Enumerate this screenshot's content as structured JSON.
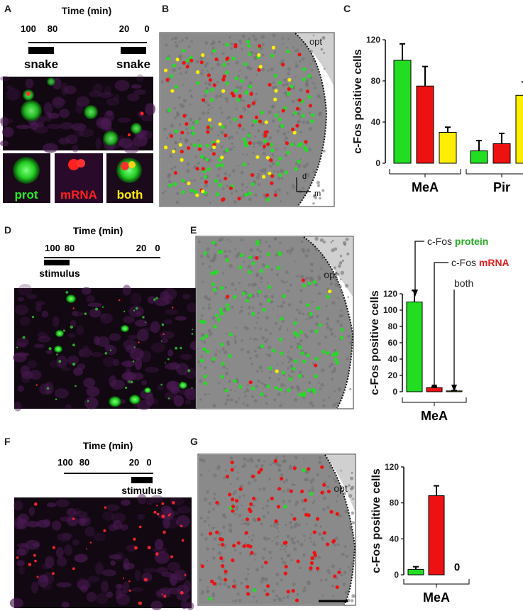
{
  "panel_labels": [
    "A",
    "B",
    "C",
    "D",
    "E",
    "F",
    "G"
  ],
  "timelines": {
    "A": {
      "title": "Time (min)",
      "ticks": [
        "100",
        "80",
        "20",
        "0"
      ],
      "stimuli": [
        "snake",
        "snake"
      ]
    },
    "D": {
      "title": "Time (min)",
      "ticks": [
        "100",
        "80",
        "20",
        "0"
      ],
      "stimuli": [
        "stimulus"
      ]
    },
    "F": {
      "title": "Time (min)",
      "ticks": [
        "100",
        "80",
        "20",
        "0"
      ],
      "stimuli": [
        "stimulus"
      ]
    }
  },
  "insets": {
    "labels": [
      "prot",
      "mRNA",
      "both"
    ]
  },
  "maps": {
    "B": {
      "region_label": "opt",
      "axis_d": "d",
      "axis_m": "m"
    },
    "E": {
      "region_label": "opt"
    },
    "G": {
      "region_label": "opt"
    }
  },
  "legend": {
    "line1_prefix": "c-Fos ",
    "line1_word": "protein",
    "line2_prefix": "c-Fos ",
    "line2_word": "mRNA",
    "line3": "both"
  },
  "colors": {
    "protein": "#22dd22",
    "mrna": "#ee1111",
    "both": "#ffee00",
    "tissue": "#8a8a8a"
  },
  "chart_data": [
    {
      "panel": "C",
      "type": "bar",
      "ylabel": "c-Fos positive cells",
      "ylim": [
        0,
        120
      ],
      "yticks": [
        0,
        40,
        80,
        120
      ],
      "groups": [
        "MeA",
        "Pir"
      ],
      "series": [
        {
          "name": "protein",
          "values": [
            100,
            12
          ],
          "errors": [
            16,
            10
          ]
        },
        {
          "name": "mRNA",
          "values": [
            75,
            19
          ],
          "errors": [
            19,
            10
          ]
        },
        {
          "name": "both",
          "values": [
            30,
            66
          ],
          "errors": [
            5,
            13
          ]
        }
      ]
    },
    {
      "panel": "E",
      "type": "bar",
      "ylabel": "c-Fos positive cells",
      "ylim": [
        0,
        120
      ],
      "yticks": [
        0,
        20,
        40,
        60,
        80,
        100,
        120
      ],
      "groups": [
        "MeA"
      ],
      "series": [
        {
          "name": "protein",
          "values": [
            110
          ],
          "errors": [
            14
          ]
        },
        {
          "name": "mRNA",
          "values": [
            5
          ],
          "errors": [
            1
          ]
        },
        {
          "name": "both",
          "values": [
            1
          ],
          "errors": [
            0.5
          ]
        }
      ]
    },
    {
      "panel": "G",
      "type": "bar",
      "ylabel": "c-Fos positive cells",
      "ylim": [
        0,
        120
      ],
      "yticks": [
        0,
        40,
        80,
        120
      ],
      "groups": [
        "MeA"
      ],
      "annotation": "0",
      "series": [
        {
          "name": "protein",
          "values": [
            6
          ],
          "errors": [
            3
          ]
        },
        {
          "name": "mRNA",
          "values": [
            88
          ],
          "errors": [
            11
          ]
        },
        {
          "name": "both",
          "values": [
            0
          ],
          "errors": [
            0
          ]
        }
      ]
    }
  ]
}
